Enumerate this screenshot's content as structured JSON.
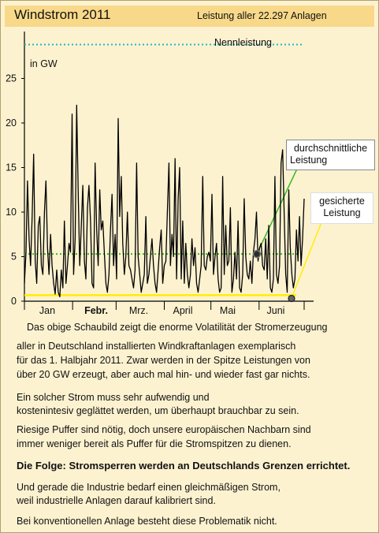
{
  "header": {
    "title": "Windstrom 2011",
    "subtitle": "Leistung aller  22.297 Anlagen"
  },
  "chart_data": {
    "type": "line",
    "ylabel": "in GW",
    "ylim": [
      0,
      30
    ],
    "yticks": [
      0,
      5,
      10,
      15,
      20,
      25
    ],
    "grid": false,
    "month_labels": [
      "Jan",
      "Febr.",
      "Mrz.",
      "April",
      "Mai",
      "Juni"
    ],
    "x_unit": "day of 2011",
    "xlim": [
      1,
      181
    ],
    "series": [
      {
        "values": [
          2.0,
          5.5,
          13.5,
          7.0,
          4.0,
          9.5,
          16.5,
          4.5,
          2.0,
          8.5,
          9.5,
          4.0,
          3.0,
          10.0,
          13.5,
          6.0,
          3.0,
          7.5,
          4.0,
          2.0,
          0.8,
          3.5,
          1.0,
          0.5,
          3.5,
          1.5,
          9.0,
          2.0,
          4.0,
          6.5,
          5.5,
          21.0,
          3.0,
          7.0,
          22.0,
          12.0,
          4.0,
          8.5,
          13.0,
          4.5,
          2.5,
          10.5,
          13.0,
          9.0,
          2.0,
          1.5,
          15.5,
          8.0,
          4.0,
          12.5,
          8.0,
          9.0,
          5.5,
          2.0,
          1.0,
          3.0,
          8.0,
          12.0,
          4.0,
          7.5,
          2.5,
          20.5,
          9.5,
          14.0,
          6.5,
          3.0,
          5.0,
          10.0,
          4.0,
          3.5,
          2.5,
          1.5,
          3.5,
          15.5,
          5.0,
          3.0,
          1.0,
          2.0,
          3.0,
          9.5,
          2.0,
          3.0,
          5.0,
          7.0,
          4.0,
          2.0,
          1.0,
          3.5,
          6.0,
          8.0,
          2.0,
          4.0,
          4.5,
          10.0,
          15.5,
          4.0,
          7.5,
          5.0,
          16.0,
          2.5,
          11.5,
          15.0,
          2.5,
          9.0,
          2.0,
          6.5,
          3.0,
          1.5,
          3.0,
          7.0,
          4.0,
          6.0,
          2.0,
          1.0,
          2.5,
          4.0,
          14.0,
          4.0,
          3.5,
          5.0,
          5.5,
          4.5,
          12.0,
          3.0,
          5.0,
          6.5,
          2.5,
          1.0,
          1.5,
          14.0,
          3.0,
          8.5,
          4.0,
          4.5,
          10.5,
          1.0,
          2.5,
          5.5,
          2.5,
          9.0,
          1.5,
          1.0,
          3.0,
          11.5,
          5.0,
          3.0,
          2.5,
          4.5,
          2.0,
          5.5,
          7.0,
          10.0,
          4.5,
          6.0,
          6.5,
          4.0,
          3.5,
          7.0,
          2.5,
          8.5,
          1.5,
          1.0,
          2.5,
          14.0,
          3.0,
          2.0,
          4.0,
          15.5,
          17.0,
          10.0,
          3.0,
          1.0,
          12.5,
          6.0,
          3.0,
          1.5,
          2.5,
          8.0,
          4.5,
          9.5,
          4.0,
          7.0,
          11.5
        ]
      }
    ],
    "reference_lines": [
      {
        "label": "Nennleistung",
        "value": 28.8,
        "color": "#22b8c0"
      },
      {
        "label": "durchschnittliche Leistung",
        "value": 5.3,
        "color": "#33bb22"
      },
      {
        "label": "gesicherte Leistung",
        "value": 0.5,
        "color": "#ffee00"
      }
    ],
    "callouts": {
      "average": "durchschnittliche\nLeistung",
      "secured": "gesicherte\nLeistung"
    }
  },
  "callout_lines": {
    "average": [
      "durchschnittliche",
      "Leistung"
    ],
    "secured": [
      "gesicherte",
      "Leistung"
    ]
  },
  "text": {
    "p1": "Das obige Schaubild zeigt die enorme Volatilität der Stromerzeugung",
    "p2": "aller in Deutschland installierten Windkraftanlagen  exemplarisch",
    "p3": "für das 1. Halbjahr 2011. Zwar werden in der Spitze Leistungen von",
    "p4": "über 20 GW erzeugt, aber auch mal hin- und wieder fast gar nichts.",
    "p5": "Ein solcher Strom muss sehr aufwendig und",
    "p6": "kostenintesiv geglättet werden, um überhaupt brauchbar zu sein.",
    "p7": "Riesige Puffer sind nötig, doch unsere europäischen Nachbarn sind",
    "p8": "immer weniger bereit als Puffer für die Stromspitzen zu dienen.",
    "p9": "Die Folge: Stromsperren werden an Deutschlands Grenzen errichtet.",
    "p10": "Und gerade die Industrie bedarf einen gleichmäßigen Strom,",
    "p11": "weil industrielle Anlagen darauf kalibriert sind.",
    "p12": "Bei konventionellen Anlage besteht diese Problematik nicht."
  }
}
